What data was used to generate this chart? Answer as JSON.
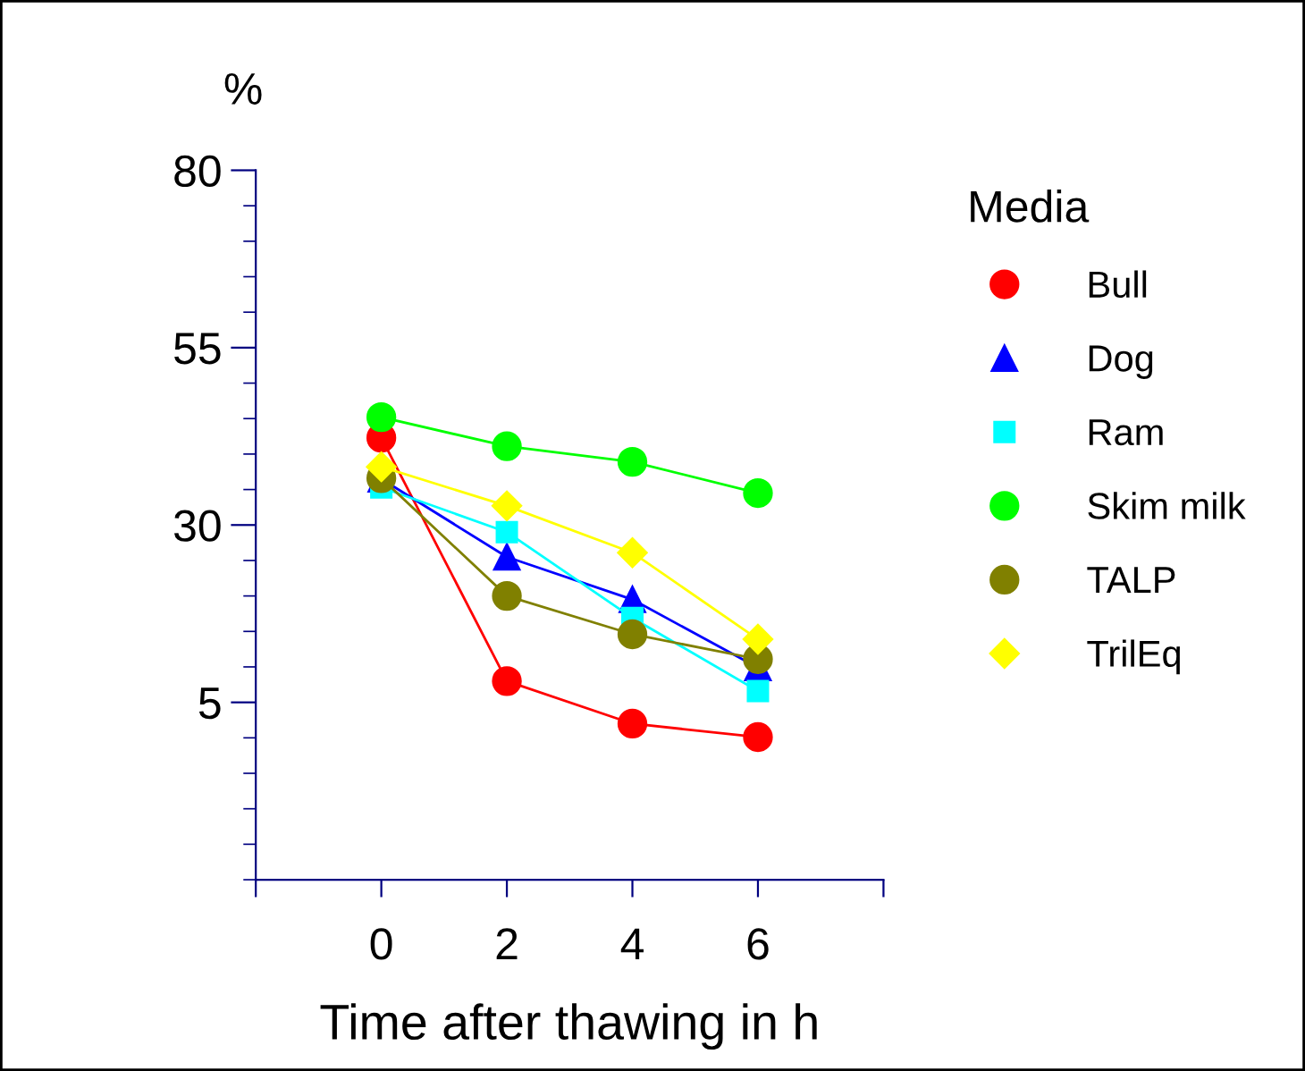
{
  "chart_data": {
    "type": "line",
    "ylabel": "%",
    "xlabel": "Time after thawing in h",
    "legend_title": "Media",
    "legend": "right",
    "grid": false,
    "x": [
      0,
      2,
      4,
      6
    ],
    "xlim": [
      -2,
      8
    ],
    "xticks": [
      {
        "value": -2,
        "label": null
      },
      0,
      2,
      4,
      6,
      {
        "value": 8,
        "label": null
      }
    ],
    "ylim": [
      -20,
      80
    ],
    "yticks": [
      80,
      55,
      30,
      5
    ],
    "series": [
      {
        "name": "Bull",
        "color": "#ff0000",
        "marker": "circle",
        "values": [
          42.3,
          8.0,
          2.0,
          0.1
        ]
      },
      {
        "name": "Dog",
        "color": "#0000ff",
        "marker": "triangle",
        "values": [
          36.5,
          25.5,
          19.5,
          9.9
        ]
      },
      {
        "name": "Ram",
        "color": "#00ffff",
        "marker": "square",
        "values": [
          35.3,
          29.0,
          16.9,
          6.6
        ]
      },
      {
        "name": "Skim milk",
        "color": "#00ff00",
        "marker": "circle",
        "values": [
          45.2,
          41.1,
          38.9,
          34.5
        ]
      },
      {
        "name": "TALP",
        "color": "#808000",
        "marker": "circle",
        "values": [
          36.6,
          20.0,
          14.6,
          11.1
        ]
      },
      {
        "name": "TrilEq",
        "color": "#ffff00",
        "marker": "diamond",
        "values": [
          38.2,
          32.7,
          26.1,
          13.9
        ]
      }
    ]
  }
}
